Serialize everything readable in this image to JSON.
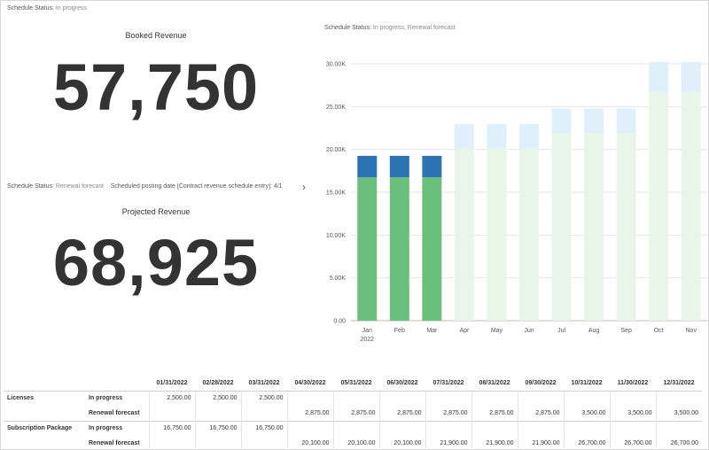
{
  "filters": {
    "top_left_label": "Schedule Status:",
    "top_left_value": "In progress",
    "chart_label": "Schedule Status:",
    "chart_value": "In progress, Renewal forecast",
    "mid_left_label": "Schedule Status:",
    "mid_left_value": "Renewal forecast",
    "mid_left_extra": "Scheduled posting date [Contract revenue schedule entry]: 4/1"
  },
  "kpis": {
    "booked_title": "Booked Revenue",
    "booked_value": "57,750",
    "projected_title": "Projected Revenue",
    "projected_value": "68,925"
  },
  "colors": {
    "green": "#6bbf7d",
    "blue": "#2b73b3",
    "light_green": "#e8f6e9",
    "light_blue": "#dff0fa",
    "grid": "#e6e6e6"
  },
  "chart_data": {
    "type": "bar",
    "stacked": true,
    "categories": [
      "Jan",
      "Feb",
      "Mar",
      "Apr",
      "May",
      "Jun",
      "Jul",
      "Aug",
      "Sep",
      "Oct",
      "Nov"
    ],
    "x_sublabel": "2022",
    "series": [
      {
        "status": "In progress",
        "part": "Subscription Package",
        "values": [
          16750,
          16750,
          16750,
          0,
          0,
          0,
          0,
          0,
          0,
          0,
          0
        ]
      },
      {
        "status": "In progress",
        "part": "Licenses",
        "values": [
          2500,
          2500,
          2500,
          0,
          0,
          0,
          0,
          0,
          0,
          0,
          0
        ]
      },
      {
        "status": "Renewal forecast",
        "part": "Subscription Package",
        "values": [
          0,
          0,
          0,
          20100,
          20100,
          20100,
          21900,
          21900,
          21900,
          26700,
          26700
        ]
      },
      {
        "status": "Renewal forecast",
        "part": "Licenses",
        "values": [
          0,
          0,
          0,
          2875,
          2875,
          2875,
          2875,
          2875,
          2875,
          3500,
          3500
        ]
      }
    ],
    "yticks": [
      "0.00",
      "5.00K",
      "10.00K",
      "15.00K",
      "20.00K",
      "25.00K",
      "30.00K"
    ],
    "ylim": [
      0,
      30000
    ],
    "grid": true
  },
  "table": {
    "dates": [
      "01/31/2022",
      "02/28/2022",
      "03/31/2022",
      "04/30/2022",
      "05/31/2022",
      "06/30/2022",
      "07/31/2022",
      "08/31/2022",
      "09/30/2022",
      "10/31/2022",
      "11/30/2022",
      "12/31/2022"
    ],
    "rows": [
      {
        "group": "Licenses",
        "status": "In progress",
        "values": [
          "2,500.00",
          "2,500.00",
          "2,500.00",
          "",
          "",
          "",
          "",
          "",
          "",
          "",
          "",
          ""
        ]
      },
      {
        "group": "",
        "status": "Renewal forecast",
        "values": [
          "",
          "",
          "",
          "2,875.00",
          "2,875.00",
          "2,875.00",
          "2,875.00",
          "2,875.00",
          "2,875.00",
          "3,500.00",
          "3,500.00",
          "3,500.00"
        ]
      },
      {
        "group": "Subscription Package",
        "status": "In progress",
        "values": [
          "16,750.00",
          "16,750.00",
          "16,750.00",
          "",
          "",
          "",
          "",
          "",
          "",
          "",
          "",
          ""
        ]
      },
      {
        "group": "",
        "status": "Renewal forecast",
        "values": [
          "",
          "",
          "",
          "20,100.00",
          "20,100.00",
          "20,100.00",
          "21,900.00",
          "21,900.00",
          "21,900.00",
          "26,700.00",
          "26,700.00",
          "26,700.00"
        ]
      }
    ]
  }
}
